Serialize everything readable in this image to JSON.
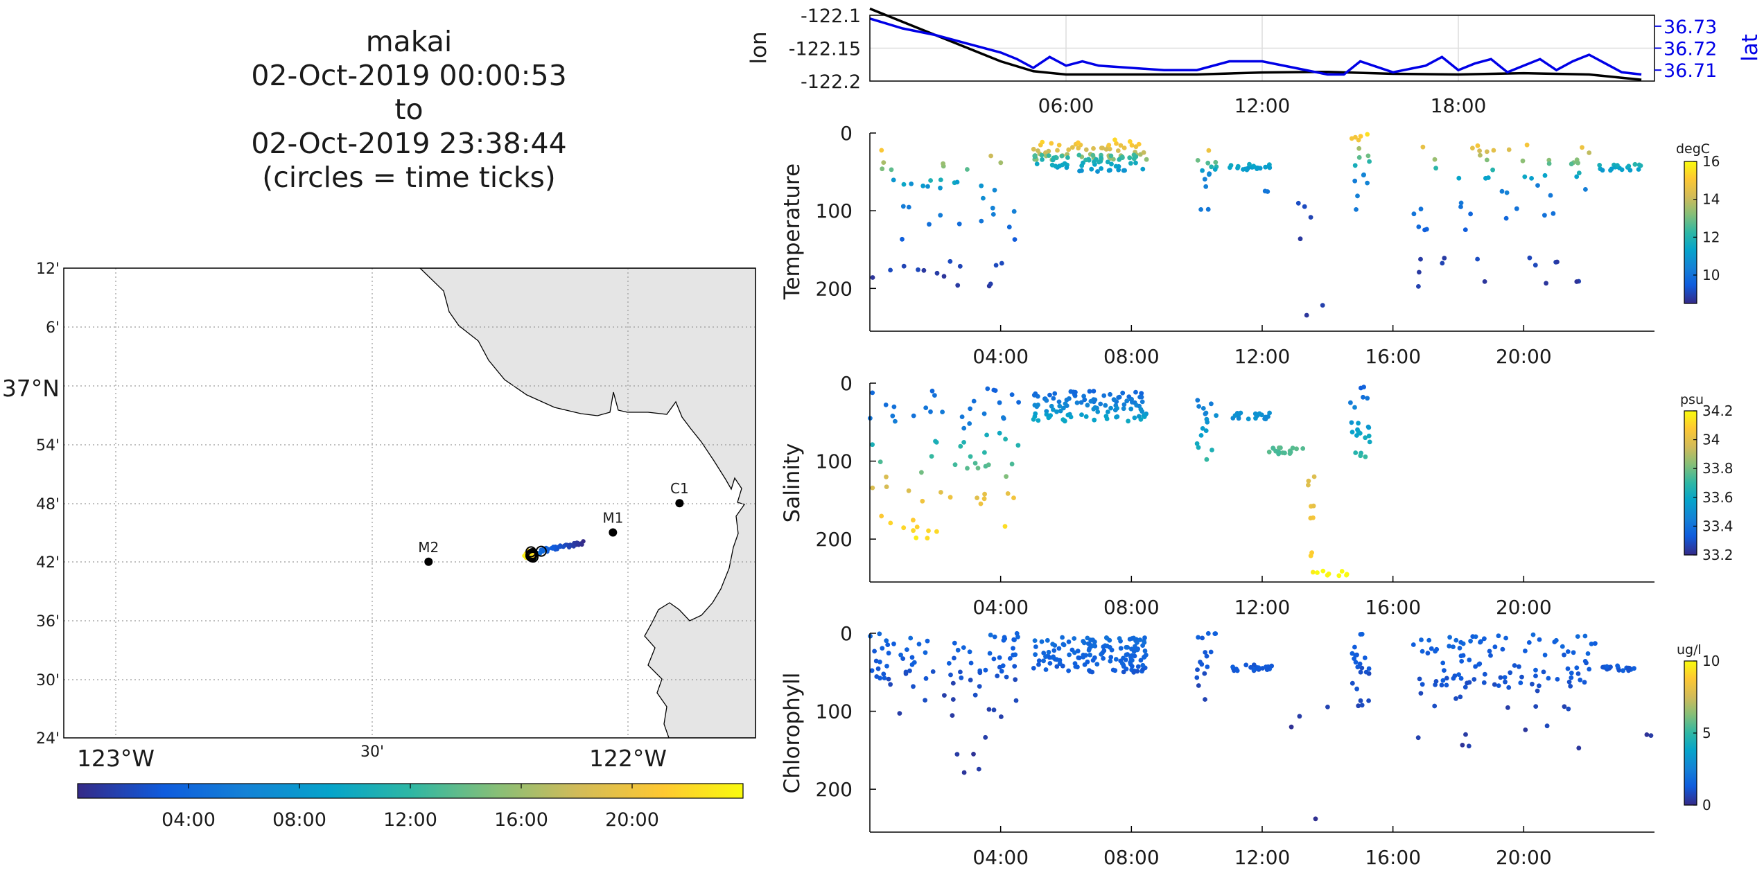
{
  "title": {
    "lines": [
      "makai",
      "02-Oct-2019 00:00:53",
      "to",
      "02-Oct-2019 23:38:44",
      "(circles = time ticks)"
    ]
  },
  "map": {
    "lat_ticks": [
      "12'",
      "6'",
      "37°N",
      "54'",
      "48'",
      "42'",
      "36'",
      "30'",
      "24'"
    ],
    "lon_ticks": [
      "123°W",
      "30'",
      "122°W"
    ],
    "stations": [
      {
        "name": "M2",
        "lon": -122.39,
        "lat": 36.7
      },
      {
        "name": "M1",
        "lon": -122.03,
        "lat": 36.75
      },
      {
        "name": "C1",
        "lon": -121.9,
        "lat": 36.8
      }
    ],
    "land_color": "#e5e5e5",
    "colorbar_ticks": [
      "04:00",
      "08:00",
      "12:00",
      "16:00",
      "20:00"
    ]
  },
  "chart_data": [
    {
      "type": "line",
      "panel": "position",
      "xlabel": "",
      "x_ticks": [
        "06:00",
        "12:00",
        "18:00"
      ],
      "ylabel": "lon",
      "ylabel_right": "lat",
      "ylim_left": [
        -122.2,
        -122.1
      ],
      "left_ticks": [
        "-122.1",
        "-122.15",
        "-122.2"
      ],
      "ylim_right": [
        36.705,
        36.735
      ],
      "right_ticks": [
        "36.73",
        "36.72",
        "36.71"
      ],
      "series": [
        {
          "name": "lon",
          "color": "#000000",
          "x": [
            0,
            1,
            2,
            3,
            4,
            5,
            6,
            8,
            10,
            12,
            14,
            16,
            18,
            20,
            22,
            23.6
          ],
          "y": [
            -122.09,
            -122.11,
            -122.13,
            -122.15,
            -122.17,
            -122.185,
            -122.19,
            -122.19,
            -122.19,
            -122.187,
            -122.186,
            -122.189,
            -122.19,
            -122.188,
            -122.19,
            -122.198
          ]
        },
        {
          "name": "lat",
          "color": "#0000e6",
          "x": [
            0,
            1,
            2,
            3,
            4,
            4.5,
            5,
            5.5,
            6,
            6.5,
            7,
            8,
            9,
            10,
            11,
            12,
            13,
            14,
            14.5,
            15,
            16,
            17,
            17.5,
            18,
            18.5,
            19,
            19.5,
            20,
            20.5,
            21,
            21.5,
            22,
            22.5,
            23,
            23.6
          ],
          "y": [
            36.7335,
            36.729,
            36.726,
            36.722,
            36.718,
            36.715,
            36.711,
            36.716,
            36.712,
            36.714,
            36.712,
            36.711,
            36.71,
            36.71,
            36.714,
            36.714,
            36.711,
            36.708,
            36.708,
            36.714,
            36.709,
            36.712,
            36.716,
            36.71,
            36.713,
            36.715,
            36.709,
            36.712,
            36.715,
            36.71,
            36.714,
            36.717,
            36.713,
            36.709,
            36.708
          ]
        }
      ]
    },
    {
      "type": "scatter",
      "panel": "temperature",
      "ylabel": "Temperature",
      "x_ticks": [
        "04:00",
        "08:00",
        "12:00",
        "16:00",
        "20:00"
      ],
      "y_ticks": [
        "0",
        "100",
        "200"
      ],
      "ylim": [
        0,
        255
      ],
      "y_reversed": true,
      "colorbar": {
        "unit": "degC",
        "min": 8.5,
        "max": 16,
        "ticks": [
          "16",
          "14",
          "12",
          "10"
        ]
      },
      "groups": [
        {
          "t0": 0.0,
          "t1": 4.6,
          "n": 14,
          "min": 20,
          "max": 70,
          "c0": 15,
          "c1": 11
        },
        {
          "t0": 0.0,
          "t1": 4.6,
          "n": 20,
          "min": 60,
          "max": 140,
          "c0": 11,
          "c1": 9.5
        },
        {
          "t0": 0.0,
          "t1": 4.6,
          "n": 14,
          "min": 165,
          "max": 200,
          "c0": 9,
          "c1": 8.8
        },
        {
          "t0": 5.0,
          "t1": 8.5,
          "n": 60,
          "min": 8,
          "max": 35,
          "c0": 15.5,
          "c1": 13
        },
        {
          "t0": 5.0,
          "t1": 8.5,
          "n": 60,
          "min": 28,
          "max": 50,
          "c0": 12.5,
          "c1": 10.8
        },
        {
          "t0": 10.0,
          "t1": 10.6,
          "n": 8,
          "min": 20,
          "max": 50,
          "c0": 15,
          "c1": 11
        },
        {
          "t0": 10.0,
          "t1": 10.6,
          "n": 6,
          "min": 50,
          "max": 100,
          "c0": 10.5,
          "c1": 10
        },
        {
          "t0": 11.0,
          "t1": 12.3,
          "n": 22,
          "min": 40,
          "max": 48,
          "c0": 11.5,
          "c1": 11
        },
        {
          "t0": 12.0,
          "t1": 12.2,
          "n": 2,
          "min": 60,
          "max": 85,
          "c0": 10,
          "c1": 10
        },
        {
          "t0": 12.7,
          "t1": 14.5,
          "n": 6,
          "min": 90,
          "max": 250,
          "c0": 9,
          "c1": 8.7
        },
        {
          "t0": 14.7,
          "t1": 15.3,
          "n": 10,
          "min": 0,
          "max": 50,
          "c0": 15.5,
          "c1": 11
        },
        {
          "t0": 14.7,
          "t1": 15.3,
          "n": 6,
          "min": 50,
          "max": 100,
          "c0": 10.5,
          "c1": 10
        },
        {
          "t0": 16.6,
          "t1": 22.2,
          "n": 30,
          "min": 15,
          "max": 60,
          "c0": 15,
          "c1": 11
        },
        {
          "t0": 16.6,
          "t1": 22.2,
          "n": 18,
          "min": 60,
          "max": 130,
          "c0": 10.5,
          "c1": 9.5
        },
        {
          "t0": 16.6,
          "t1": 22.2,
          "n": 14,
          "min": 160,
          "max": 200,
          "c0": 9,
          "c1": 8.8
        },
        {
          "t0": 22.3,
          "t1": 23.6,
          "n": 18,
          "min": 40,
          "max": 48,
          "c0": 12,
          "c1": 11
        }
      ]
    },
    {
      "type": "scatter",
      "panel": "salinity",
      "ylabel": "Salinity",
      "x_ticks": [
        "04:00",
        "08:00",
        "12:00",
        "16:00",
        "20:00"
      ],
      "y_ticks": [
        "0",
        "100",
        "200"
      ],
      "ylim": [
        0,
        255
      ],
      "y_reversed": true,
      "colorbar": {
        "unit": "psu",
        "min": 33.2,
        "max": 34.2,
        "ticks": [
          "34.2",
          "34",
          "33.8",
          "33.6",
          "33.4",
          "33.2"
        ]
      },
      "groups": [
        {
          "t0": 0.0,
          "t1": 4.6,
          "n": 26,
          "min": 5,
          "max": 60,
          "c0": 33.35,
          "c1": 33.45
        },
        {
          "t0": 0.0,
          "t1": 4.6,
          "n": 22,
          "min": 60,
          "max": 120,
          "c0": 33.6,
          "c1": 33.8
        },
        {
          "t0": 0.0,
          "t1": 4.6,
          "n": 24,
          "min": 120,
          "max": 200,
          "c0": 33.95,
          "c1": 34.15
        },
        {
          "t0": 5.0,
          "t1": 8.5,
          "n": 110,
          "min": 10,
          "max": 50,
          "c0": 33.35,
          "c1": 33.6
        },
        {
          "t0": 10.0,
          "t1": 10.6,
          "n": 16,
          "min": 20,
          "max": 100,
          "c0": 33.4,
          "c1": 33.7
        },
        {
          "t0": 11.0,
          "t1": 12.3,
          "n": 20,
          "min": 38,
          "max": 46,
          "c0": 33.5,
          "c1": 33.5
        },
        {
          "t0": 12.2,
          "t1": 13.4,
          "n": 16,
          "min": 82,
          "max": 92,
          "c0": 33.75,
          "c1": 33.75
        },
        {
          "t0": 13.4,
          "t1": 13.6,
          "n": 10,
          "min": 110,
          "max": 245,
          "c0": 33.95,
          "c1": 34.15
        },
        {
          "t0": 13.6,
          "t1": 14.6,
          "n": 8,
          "min": 240,
          "max": 248,
          "c0": 34.2,
          "c1": 34.2
        },
        {
          "t0": 14.7,
          "t1": 15.3,
          "n": 22,
          "min": 5,
          "max": 95,
          "c0": 33.35,
          "c1": 33.7
        }
      ]
    },
    {
      "type": "scatter",
      "panel": "chlorophyll",
      "ylabel": "Chlorophyll",
      "x_ticks": [
        "04:00",
        "08:00",
        "12:00",
        "16:00",
        "20:00"
      ],
      "y_ticks": [
        "0",
        "100",
        "200"
      ],
      "ylim": [
        0,
        255
      ],
      "y_reversed": true,
      "colorbar": {
        "unit": "ug/l",
        "min": 0,
        "max": 10,
        "ticks": [
          "10",
          "5",
          "0"
        ]
      },
      "groups": [
        {
          "t0": 0.0,
          "t1": 4.6,
          "n": 70,
          "min": 0,
          "max": 60,
          "c0": 1.6,
          "c1": 1.0
        },
        {
          "t0": 0.0,
          "t1": 4.6,
          "n": 14,
          "min": 60,
          "max": 110,
          "c0": 0.8,
          "c1": 0.5
        },
        {
          "t0": 2.5,
          "t1": 4.0,
          "n": 5,
          "min": 130,
          "max": 180,
          "c0": 0.4,
          "c1": 0.3
        },
        {
          "t0": 5.0,
          "t1": 8.5,
          "n": 140,
          "min": 5,
          "max": 50,
          "c0": 1.8,
          "c1": 1.2
        },
        {
          "t0": 10.0,
          "t1": 10.6,
          "n": 16,
          "min": 0,
          "max": 90,
          "c0": 1.4,
          "c1": 0.7
        },
        {
          "t0": 11.0,
          "t1": 12.3,
          "n": 20,
          "min": 40,
          "max": 48,
          "c0": 1.2,
          "c1": 1.2
        },
        {
          "t0": 12.8,
          "t1": 14.6,
          "n": 4,
          "min": 85,
          "max": 250,
          "c0": 0.4,
          "c1": 0.2
        },
        {
          "t0": 14.7,
          "t1": 15.3,
          "n": 22,
          "min": 0,
          "max": 95,
          "c0": 1.4,
          "c1": 0.7
        },
        {
          "t0": 16.6,
          "t1": 22.2,
          "n": 100,
          "min": 0,
          "max": 70,
          "c0": 1.6,
          "c1": 1.0
        },
        {
          "t0": 16.6,
          "t1": 22.2,
          "n": 16,
          "min": 70,
          "max": 150,
          "c0": 0.8,
          "c1": 0.4
        },
        {
          "t0": 22.3,
          "t1": 23.6,
          "n": 18,
          "min": 40,
          "max": 48,
          "c0": 1.2,
          "c1": 1.2
        },
        {
          "t0": 23.6,
          "t1": 23.9,
          "n": 2,
          "min": 130,
          "max": 132,
          "c0": 0.4,
          "c1": 0.4
        }
      ]
    }
  ]
}
